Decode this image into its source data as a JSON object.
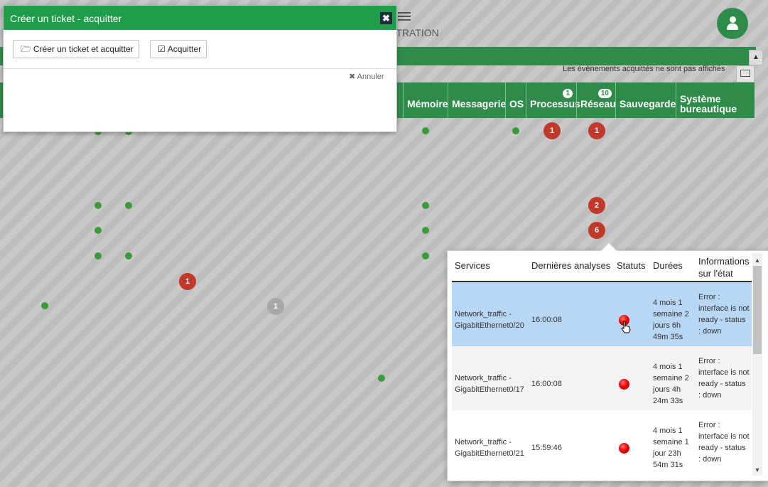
{
  "nav": {
    "admin_label": "STRATION"
  },
  "notice": "Les évènements acquittés ne sont pas affichés",
  "columns": [
    {
      "label": "l",
      "badge": ""
    },
    {
      "label": "Mémoire",
      "badge": ""
    },
    {
      "label": "Messagerie",
      "badge": ""
    },
    {
      "label": "OS",
      "badge": ""
    },
    {
      "label": "Processus",
      "badge": "1"
    },
    {
      "label": "Réseau",
      "badge": "10"
    },
    {
      "label": "Sauvegarde",
      "badge": ""
    },
    {
      "label": "Système bureautique",
      "badge": ""
    }
  ],
  "counts": [
    "1",
    "1",
    "2",
    "6",
    "1",
    "1"
  ],
  "modal": {
    "title": "Créer un ticket - acquitter",
    "close": "✖",
    "btn_create": "Créer un ticket et acquitter",
    "btn_ack": "Acquitter",
    "cancel": "Annuler"
  },
  "popover": {
    "headers": [
      "Services",
      "Dernières analyses",
      "Statuts",
      "Durées",
      "Informations sur l'état"
    ],
    "rows": [
      {
        "service": "Network_traffic - GigabitEthernet0/20",
        "last": "16:00:08",
        "duration": "4 mois 1 semaine 2 jours 6h 49m 35s",
        "info": "Error : interface is not ready - status : down",
        "selected": true
      },
      {
        "service": "Network_traffic - GigabitEthernet0/17",
        "last": "16:00:08",
        "duration": "4 mois 1 semaine 2 jours 4h 24m 33s",
        "info": "Error : interface is not ready - status : down",
        "selected": false
      },
      {
        "service": "Network_traffic - GigabitEthernet0/21",
        "last": "15:59:46",
        "duration": "4 mois 1 semaine 1 jour 23h 54m 31s",
        "info": "Error : interface is not ready - status : down",
        "selected": false
      }
    ]
  },
  "colors": {
    "brand_green": "#2e8b4a",
    "critical": "#c0392b",
    "ok": "#3c9a3c",
    "selected_row": "#b7d7f5"
  },
  "icons": [
    "sliders-icon",
    "user-icon",
    "chevron-up-icon",
    "screen-icon",
    "folder-open-icon",
    "check-square-icon",
    "times-icon",
    "close-icon",
    "red-status-icon",
    "hand-pointer-icon"
  ]
}
